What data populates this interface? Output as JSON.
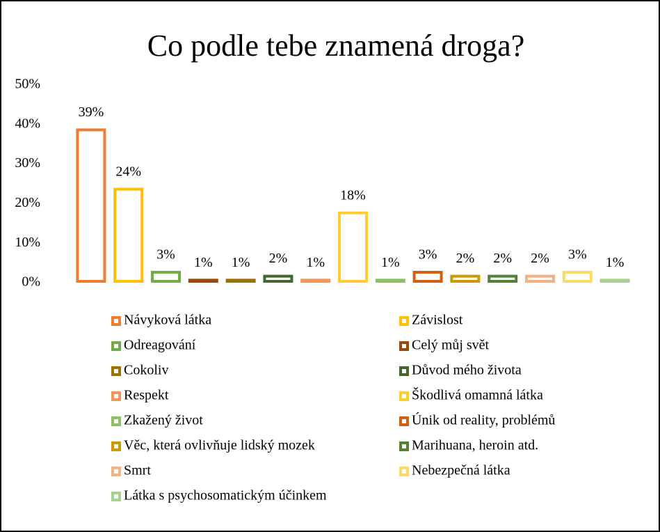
{
  "chart_data": {
    "type": "bar",
    "title": "Co podle tebe znamená droga?",
    "categories": [
      "Návyková látka",
      "Závislost",
      "Odreagování",
      "Celý můj svět",
      "Cokoliv",
      "Důvod mého života",
      "Respekt",
      "Škodlivá omamná látka",
      "Zkažený život",
      "Únik od reality, problémů",
      "Věc, která ovlivňuje lidský mozek",
      "Marihuana, heroin atd.",
      "Smrt",
      "Nebezpečná látka",
      "Látka s psychosomatickým účinkem"
    ],
    "values": [
      39,
      24,
      3,
      1,
      1,
      2,
      1,
      18,
      1,
      3,
      2,
      2,
      2,
      3,
      1
    ],
    "value_labels": [
      "39%",
      "24%",
      "3%",
      "1%",
      "1%",
      "2%",
      "1%",
      "18%",
      "1%",
      "3%",
      "2%",
      "2%",
      "2%",
      "3%",
      "1%"
    ],
    "colors": [
      "#ED7D31",
      "#FFC000",
      "#70AD47",
      "#9E480E",
      "#997300",
      "#43682B",
      "#F1975A",
      "#FFCD33",
      "#8CC168",
      "#D26012",
      "#CC9A00",
      "#548235",
      "#F4B183",
      "#FFD966",
      "#A9D18E"
    ],
    "ylim": [
      0,
      50
    ],
    "yticks": [
      {
        "value": 0,
        "label": "0%"
      },
      {
        "value": 10,
        "label": "10%"
      },
      {
        "value": 20,
        "label": "20%"
      },
      {
        "value": 30,
        "label": "30%"
      },
      {
        "value": 40,
        "label": "40%"
      },
      {
        "value": 50,
        "label": "50%"
      }
    ],
    "legend": "bottom"
  }
}
